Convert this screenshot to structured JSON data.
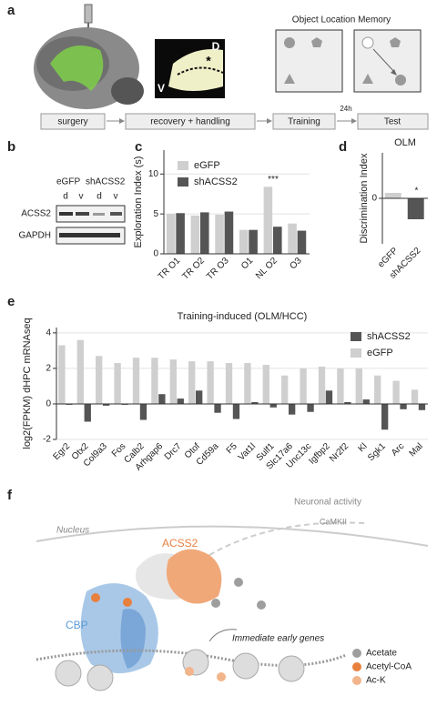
{
  "panel_labels": [
    "a",
    "b",
    "c",
    "d",
    "e",
    "f"
  ],
  "panel_a": {
    "dorsal": "D",
    "ventral": "V",
    "injection_mark": "*",
    "task_title": "Object Location Memory",
    "timeline": [
      "surgery",
      "recovery + handling",
      "Training",
      "Test"
    ],
    "interval": "24h"
  },
  "panel_b": {
    "groups": [
      "eGFP",
      "shACSS2"
    ],
    "lanes": [
      "d",
      "v",
      "d",
      "v"
    ],
    "rows": [
      "ACSS2",
      "GAPDH"
    ]
  },
  "chart_data": [
    {
      "type": "bar",
      "y_label": "Exploration Index (s)",
      "categories": [
        "TR O1",
        "TR O2",
        "TR O3",
        "O1",
        "NL O2",
        "O3"
      ],
      "series": [
        {
          "name": "eGFP",
          "color": "#cfcfcf",
          "values": [
            5.0,
            4.8,
            4.9,
            3.0,
            8.4,
            3.8
          ]
        },
        {
          "name": "shACSS2",
          "color": "#555555",
          "values": [
            5.1,
            5.2,
            5.3,
            3.0,
            3.4,
            2.9
          ]
        }
      ],
      "ylim": [
        0,
        13
      ],
      "yticks": [
        0,
        5,
        10
      ],
      "grid": true,
      "legend": "upper left",
      "annotations": [
        {
          "text": "***",
          "category": "NL O2"
        }
      ]
    },
    {
      "type": "bar",
      "title": "OLM",
      "y_label": "Discrimination Index",
      "categories": [
        "eGFP",
        "shACSS2"
      ],
      "values": [
        6,
        -23
      ],
      "colors": [
        "#cfcfcf",
        "#555555"
      ],
      "ylim": [
        -50,
        50
      ],
      "yticks": [
        0
      ],
      "grid": false,
      "annotations": [
        {
          "text": "*",
          "category": "shACSS2"
        }
      ]
    },
    {
      "type": "bar",
      "title": "Training-induced (OLM/HCC)",
      "y_label": "log2(FPKM) dHPC mRNAseq",
      "categories": [
        "Egr2",
        "Otx2",
        "Col9a3",
        "Fos",
        "Calb2",
        "Arhgap6",
        "Drc7",
        "Otof",
        "Cd59a",
        "F5",
        "Vat1l",
        "Sulf1",
        "Slc17a6",
        "Unc13c",
        "Igfbp2",
        "Nr2f2",
        "Kl",
        "Sgk1",
        "Arc",
        "Mal"
      ],
      "series": [
        {
          "name": "shACSS2",
          "color": "#555555",
          "values": [
            -0.05,
            -1.0,
            -0.1,
            -0.05,
            -0.9,
            0.55,
            0.3,
            0.75,
            -0.5,
            -0.85,
            0.1,
            -0.2,
            -0.6,
            -0.45,
            0.75,
            0.1,
            0.25,
            -1.45,
            -0.3,
            -0.35
          ]
        },
        {
          "name": "eGFP",
          "color": "#cfcfcf",
          "values": [
            3.3,
            3.6,
            2.7,
            2.3,
            2.6,
            2.6,
            2.5,
            2.4,
            2.4,
            2.3,
            2.3,
            2.2,
            1.6,
            2.0,
            2.1,
            2.0,
            2.0,
            1.6,
            1.3,
            0.8
          ]
        }
      ],
      "series_order": "eGFP first",
      "ylim": [
        -2,
        4.3
      ],
      "yticks": [
        -2,
        0,
        2,
        4
      ],
      "grid": true,
      "legend": "upper right",
      "annotations": []
    }
  ],
  "panel_f": {
    "activity": "Neuronal activity",
    "kinase": "CaMKII",
    "compartment": "Nucleus",
    "enzyme": "ACSS2",
    "acetyltransferase": "CBP",
    "genes": "Immediate early genes",
    "legend": [
      {
        "name": "Acetate",
        "color": "#9e9e9e"
      },
      {
        "name": "Acetyl-CoA",
        "color": "#e8803e"
      },
      {
        "name": "Ac-K",
        "color": "#f2b48a"
      }
    ]
  }
}
